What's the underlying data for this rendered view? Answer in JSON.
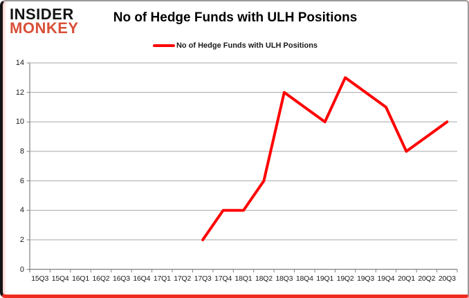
{
  "brand": {
    "line1": "INSIDER",
    "line2": "MONKEY",
    "line1_color": "#141414",
    "line2_color": "#d94f38"
  },
  "title": "No of Hedge Funds with ULH Positions",
  "legend": {
    "label": "No of Hedge Funds with ULH Positions",
    "swatch_color": "#ff0000"
  },
  "colors": {
    "line": "#ff0000",
    "gridline": "#a6a6a6",
    "axis": "#808080",
    "bottom_border": "#ee2a1e"
  },
  "chart_data": {
    "type": "line",
    "title": "No of Hedge Funds with ULH Positions",
    "series": [
      {
        "name": "No of Hedge Funds with ULH Positions",
        "values": [
          null,
          null,
          null,
          null,
          null,
          null,
          null,
          null,
          2,
          4,
          4,
          6,
          12,
          11,
          10,
          13,
          12,
          11,
          8,
          9,
          10
        ]
      }
    ],
    "categories": [
      "15Q3",
      "15Q4",
      "16Q1",
      "16Q2",
      "16Q3",
      "16Q4",
      "17Q1",
      "17Q2",
      "17Q3",
      "17Q4",
      "18Q1",
      "18Q2",
      "18Q3",
      "18Q4",
      "19Q1",
      "19Q2",
      "19Q3",
      "19Q4",
      "20Q1",
      "20Q2",
      "20Q3"
    ],
    "y_ticks": [
      0,
      2,
      4,
      6,
      8,
      10,
      12,
      14
    ],
    "ylim": [
      0,
      14
    ],
    "xlabel": "",
    "ylabel": "",
    "grid": true,
    "legend_position": "top-center",
    "line_width": 4
  }
}
